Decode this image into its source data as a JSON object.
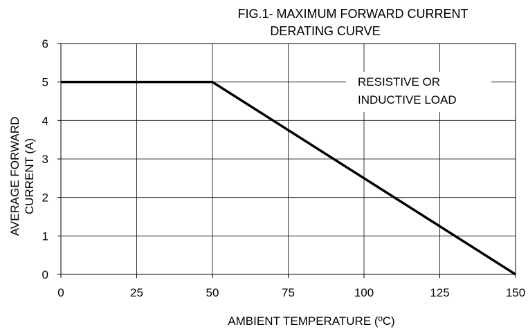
{
  "chart_data": {
    "type": "line",
    "title_lines": [
      "FIG.1- MAXIMUM FORWARD CURRENT",
      "DERATING CURVE"
    ],
    "xlabel": "AMBIENT TEMPERATURE (ºC)",
    "ylabel_lines": [
      "AVERAGE FORWARD",
      "CURRENT (A)"
    ],
    "xlim": [
      0,
      150
    ],
    "ylim": [
      0,
      6
    ],
    "xticks": [
      0,
      25,
      50,
      75,
      100,
      125,
      150
    ],
    "yticks": [
      0,
      1,
      2,
      3,
      4,
      5,
      6
    ],
    "grid": true,
    "legend": "none",
    "annotation_lines": [
      "RESISTIVE OR",
      "INDUCTIVE LOAD"
    ],
    "series": [
      {
        "x": [
          0,
          50,
          150
        ],
        "y": [
          5,
          5,
          0
        ],
        "color": "#000000"
      }
    ]
  }
}
